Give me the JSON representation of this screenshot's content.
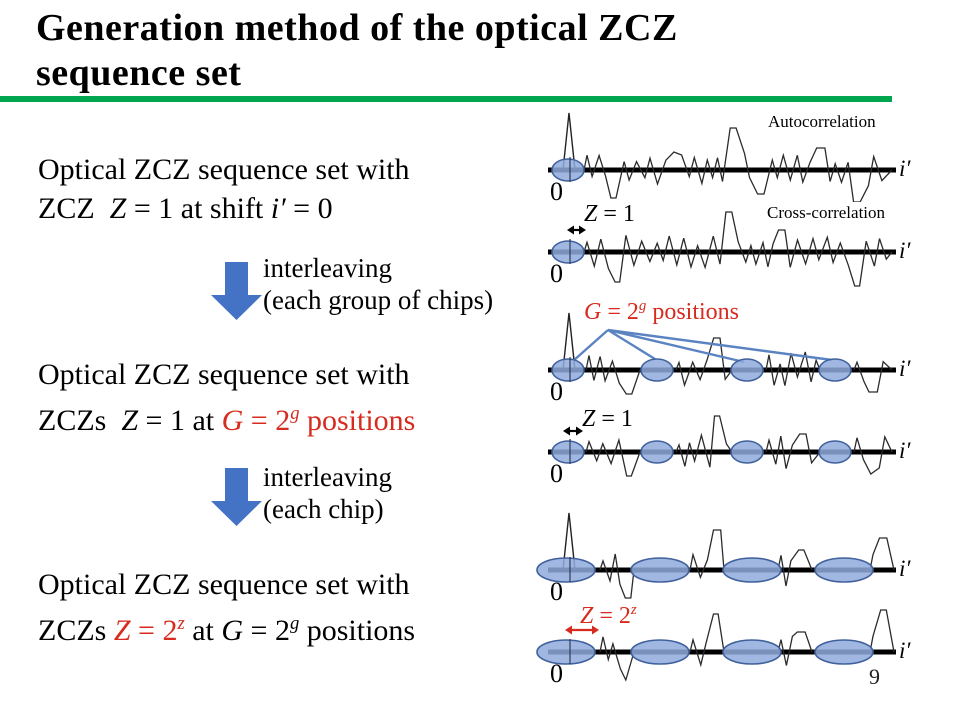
{
  "title": {
    "line1": "Generation method of the optical ZCZ",
    "line2": "sequence set"
  },
  "colors": {
    "accent_green": "#00a550",
    "arrow_blue": "#4472c4",
    "ellipse_fill": "#8faadc",
    "ellipse_stroke": "#41619d",
    "connector_blue": "#5b83c2",
    "red": "#d62b1e"
  },
  "steps": [
    {
      "line1": "Optical ZCZ sequence set with",
      "line2": {
        "a": "ZCZ  ",
        "z": "Z",
        "b": " = 1 at shift ",
        "i": "i′",
        "c": " = 0"
      }
    },
    {
      "line1": "Optical ZCZ sequence set with",
      "line2": {
        "a": "ZCZs  ",
        "z": "Z",
        "b": " = 1 at "
      },
      "line2_red": {
        "g": "G",
        "eq": " = 2",
        "sup": "g",
        "suffix": " positions"
      }
    },
    {
      "line1": "Optical ZCZ sequence set with",
      "line2_pre": "ZCZs ",
      "line2_red": {
        "z": "Z",
        "eq": " = 2",
        "sup": "z"
      },
      "line2_post": {
        "a": " at ",
        "g": "G",
        "eq": " = 2",
        "sup": "g",
        "suffix": " positions"
      }
    }
  ],
  "transitions": [
    {
      "line1": "interleaving",
      "line2": "(each group of chips)"
    },
    {
      "line1": "interleaving",
      "line2": "(each chip)"
    }
  ],
  "plots": {
    "autocorrelation_label": "Autocorrelation",
    "cross_correlation_label": "Cross-correlation",
    "axis_label": "i′",
    "origin_label": "0",
    "zcz_zone_count": 4,
    "z1_label": {
      "var": "Z",
      "eq": " = 1"
    },
    "z2_label": {
      "var": "Z",
      "eq": " = 2",
      "sup": "z"
    },
    "g_positions_label": {
      "var": "G",
      "eq": " = 2",
      "sup": "g",
      "suffix": " positions"
    }
  },
  "page_number": "9"
}
